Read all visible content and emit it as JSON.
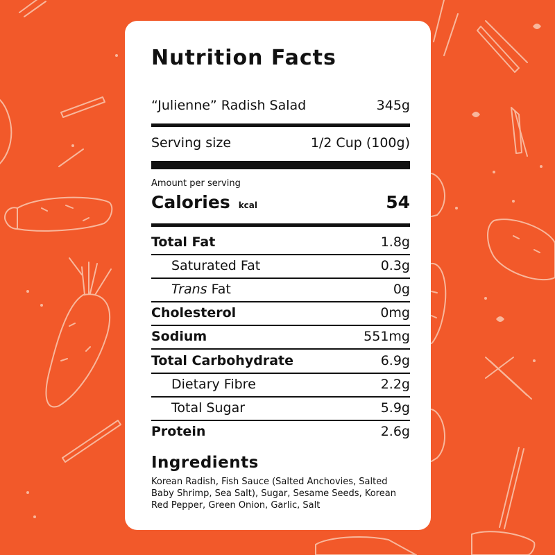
{
  "colors": {
    "background": "#f2592a",
    "pattern": "#f8b79c",
    "card": "#ffffff",
    "text": "#111111"
  },
  "pattern_icons": [
    "radish-icon",
    "radish-stick-icon",
    "leaf-icon"
  ],
  "label": {
    "title": "Nutrition Facts",
    "product_name": "“Julienne” Radish Salad",
    "product_weight": "345g",
    "serving_label": "Serving size",
    "serving_value": "1/2 Cup (100g)",
    "amount_per_serving": "Amount per serving",
    "calories_label": "Calories",
    "calories_unit": "kcal",
    "calories_value": "54",
    "nutrients": [
      {
        "label": "Total Fat",
        "value": "1.8g"
      },
      {
        "label": "Saturated Fat",
        "value": "0.3g"
      },
      {
        "label_italic": "Trans",
        "label_rest": " Fat",
        "value": "0g"
      },
      {
        "label": "Cholesterol",
        "value": "0mg"
      },
      {
        "label": "Sodium",
        "value": "551mg"
      },
      {
        "label": "Total Carbohydrate",
        "value": "6.9g"
      },
      {
        "label": "Dietary Fibre",
        "value": "2.2g"
      },
      {
        "label": "Total Sugar",
        "value": "5.9g"
      },
      {
        "label": "Protein",
        "value": "2.6g"
      }
    ],
    "ingredients_title": "Ingredients",
    "ingredients_text": "Korean Radish, Fish Sauce (Salted Anchovies, Salted Baby Shrimp, Sea Salt), Sugar, Sesame Seeds, Korean Red Pepper, Green Onion, Garlic, Salt"
  }
}
